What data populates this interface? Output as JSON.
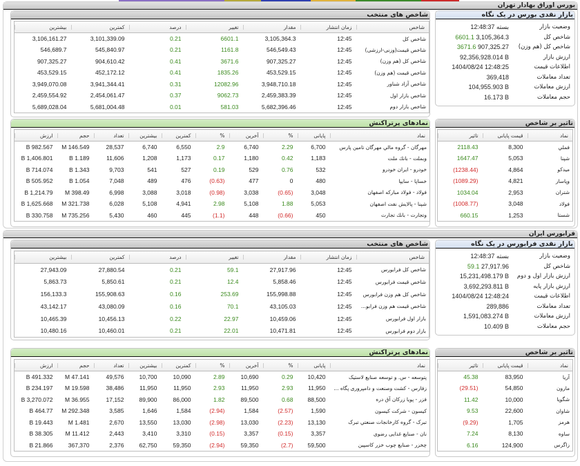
{
  "top_strip_colors": [
    "#8a6fc4",
    "#b5a93a",
    "#2f3fb0",
    "#e0b33e",
    "#3a8a2a",
    "#cc2a2a"
  ],
  "colors": {
    "positive": "#3b8a1e",
    "negative": "#d22b2b"
  },
  "tse": {
    "title": "بورس اوراق بهادار تهران",
    "indices": {
      "title": "شاخص های منتخب",
      "headers": [
        "شاخص",
        "زمان انتشار",
        "مقدار",
        "تغییر",
        "درصد",
        "کمترین",
        "بیشترین"
      ],
      "rows": [
        [
          "شاخص کل",
          "12:45",
          "3,105,364.3",
          "6601.1",
          "0.21",
          "3,101,339.09",
          "3,106,161.27"
        ],
        [
          "شاخص قیمت(وزنی-ارزشی)",
          "12:45",
          "546,549.43",
          "1161.8",
          "0.21",
          "545,840.97",
          "546,689.7"
        ],
        [
          "شاخص کل (هم وزن)",
          "12:45",
          "907,325.27",
          "3671.6",
          "0.41",
          "904,610.42",
          "907,325.27"
        ],
        [
          "شاخص قیمت (هم وزن)",
          "12:45",
          "453,529.15",
          "1835.26",
          "0.41",
          "452,172.12",
          "453,529.15"
        ],
        [
          "شاخص آزاد شناور",
          "12:45",
          "3,948,710.18",
          "12082.96",
          "0.31",
          "3,941,344.41",
          "3,949,070.08"
        ],
        [
          "شاخص بازار اول",
          "12:45",
          "2,459,383.39",
          "9062.73",
          "0.37",
          "2,454,061.47",
          "2,459,554.92"
        ],
        [
          "شاخص بازار دوم",
          "12:45",
          "5,682,396.46",
          "581.03",
          "0.01",
          "5,681,004.48",
          "5,689,028.04"
        ]
      ]
    },
    "summary": {
      "title": "بازار نقدی بورس در یک نگاه",
      "rows": [
        {
          "label": "وضعیت بازار",
          "value": "بسته 12:48:37"
        },
        {
          "label": "شاخص کل",
          "change": "6601.1",
          "value": "3,105,364.3"
        },
        {
          "label": "شاخص کل (هم وزن)",
          "change": "3671.6",
          "value": "907,325.27"
        },
        {
          "label": "ارزش بازار",
          "value": "92,356,928.014 B"
        },
        {
          "label": "اطلاعات قیمت",
          "value": "1404/08/24 12:48:25"
        },
        {
          "label": "تعداد معاملات",
          "value": "369,418"
        },
        {
          "label": "ارزش معاملات",
          "value": "104,955.903 B"
        },
        {
          "label": "حجم معاملات",
          "value": "16.173 B"
        }
      ]
    },
    "trades": {
      "title": "نمادهای پرتراکنش",
      "headers": [
        "نماد",
        "پایانی",
        "%",
        "آخرین",
        "%",
        "کمترین",
        "بیشترین",
        "تعداد",
        "حجم",
        "ارزش"
      ],
      "rows": [
        [
          "مهرگان - گروه مالي مهرگان تامين پارس",
          "6,700",
          "2.29",
          "6,740",
          "2.9",
          "6,550",
          "6,740",
          "28,537",
          "146.549 M",
          "982.567 B"
        ],
        [
          "وبملت - بانك ملت",
          "1,183",
          "0.42",
          "1,180",
          "0.17",
          "1,173",
          "1,208",
          "11,606",
          "1.189 B",
          "1,406.801 B"
        ],
        [
          "خودرو - ایران خودرو",
          "532",
          "0.76",
          "529",
          "0.19",
          "527",
          "541",
          "9,703",
          "1.343 B",
          "714.074 B"
        ],
        [
          "خساپا - سايپا",
          "480",
          "0",
          "477",
          "(0.63)",
          "476",
          "489",
          "7,048",
          "1.054 B",
          "505.952 B"
        ],
        [
          "فولاد - فولاد مباركه اصفهان",
          "3,048",
          "(0.65)",
          "3,038",
          "(0.98)",
          "3,018",
          "3,088",
          "6,998",
          "398.49 M",
          "1,214.79 B"
        ],
        [
          "شپنا - پالایش نفت اصفهان",
          "5,053",
          "1.88",
          "5,108",
          "2.98",
          "4,941",
          "5,108",
          "6,028",
          "321.738 M",
          "1,625.668 B"
        ],
        [
          "وتجارت - بانك تجارت",
          "450",
          "(0.66)",
          "448",
          "(1.1)",
          "445",
          "460",
          "5,430",
          "735.256 M",
          "330.758 B"
        ]
      ]
    },
    "impact": {
      "title": "تاثیر بر شاخص",
      "headers": [
        "نماد",
        "قیمت پایانی",
        "تاثیر"
      ],
      "rows": [
        [
          "فملي",
          "8,300",
          "2118.43"
        ],
        [
          "شپنا",
          "5,053",
          "1647.47"
        ],
        [
          "میدکو",
          "4,864",
          "(1238.44)"
        ],
        [
          "وپاسار",
          "4,821",
          "(1089.29)"
        ],
        [
          "شتران",
          "2,953",
          "1034.04"
        ],
        [
          "فولاد",
          "3,048",
          "(1008.77)"
        ],
        [
          "شستا",
          "1,253",
          "660.15"
        ]
      ]
    }
  },
  "ifb": {
    "title": "فرابورس ایران",
    "indices": {
      "title": "شاخص های منتخب",
      "headers": [
        "شاخص",
        "زمان انتشار",
        "مقدار",
        "تغییر",
        "درصد",
        "کمترین",
        "بیشترین"
      ],
      "rows": [
        [
          "شاخص كل فرابورس",
          "12:45",
          "27,917.96",
          "59.1",
          "0.21",
          "27,880.54",
          "27,943.09"
        ],
        [
          "شاخص قيمت فرابورس",
          "12:45",
          "5,858.46",
          "12.4",
          "0.21",
          "5,850.61",
          "5,863.73"
        ],
        [
          "شاخص كل هم وزن فرابورس",
          "12:45",
          "155,998.88",
          "253.69",
          "0.16",
          "155,908.63",
          "156,133.3"
        ],
        [
          "شاخص قيمت هم وزن فرابو...",
          "12:45",
          "43,105.03",
          "70.1",
          "0.16",
          "43,080.09",
          "43,142.17"
        ],
        [
          "بازار اول فرابورس",
          "12:45",
          "10,459.06",
          "22.97",
          "0.22",
          "10,456.13",
          "10,465.39"
        ],
        [
          "بازار دوم فرابورس",
          "12:45",
          "10,471.81",
          "22.01",
          "0.21",
          "10,460.01",
          "10,480.16"
        ]
      ]
    },
    "summary": {
      "title": "بازار نقدی فرابورس در یک نگاه",
      "rows": [
        {
          "label": "وضعیت بازار",
          "value": "بسته 12:48:37"
        },
        {
          "label": "شاخص کل",
          "change": "59.1",
          "value": "27,917.96"
        },
        {
          "label": "ارزش بازار اول و دوم",
          "value": "15,231,498.179 B"
        },
        {
          "label": "ارزش بازار پایه",
          "value": "3,692,293.811 B"
        },
        {
          "label": "اطلاعات قیمت",
          "value": "1404/08/24 12:48:24"
        },
        {
          "label": "تعداد معاملات",
          "value": "289,886"
        },
        {
          "label": "ارزش معاملات",
          "value": "1,591,083.274 B"
        },
        {
          "label": "حجم معاملات",
          "value": "10.409 B"
        }
      ]
    },
    "trades": {
      "title": "نمادهای پرتراکنش",
      "headers": [
        "نماد",
        "پایانی",
        "%",
        "آخرین",
        "%",
        "کمترین",
        "بیشترین",
        "تعداد",
        "حجم",
        "ارزش"
      ],
      "rows": [
        [
          "پتوسعه - س. و توسعه صنایع لاستیک",
          "10,420",
          "0.29",
          "10,690",
          "2.89",
          "10,090",
          "10,700",
          "49,576",
          "47.141 M",
          "491.332 B"
        ],
        [
          "زفارس - کشت وصنعت و دامپروری پگاه ...",
          "11,950",
          "2.93",
          "11,950",
          "2.93",
          "11,950",
          "11,950",
          "38,486",
          "19.598 M",
          "234.197 B"
        ],
        [
          "فزر - پویا زرکان آق دره",
          "88,500",
          "0.68",
          "89,500",
          "1.82",
          "86,000",
          "89,900",
          "17,152",
          "36.955 M",
          "3,270.072 B"
        ],
        [
          "کیسون - شرکت کیسون",
          "1,590",
          "(2.57)",
          "1,584",
          "(2.94)",
          "1,584",
          "1,646",
          "3,585",
          "292.348 M",
          "464.77 B"
        ],
        [
          "تبرک - گروه کارخانجات صنعتي تبرک",
          "13,130",
          "(2.23)",
          "13,030",
          "(2.98)",
          "13,030",
          "13,550",
          "2,670",
          "1.481 M",
          "19.443 B"
        ],
        [
          "نان - صنایع غذایی رضوی",
          "3,357",
          "(0.15)",
          "3,357",
          "(0.15)",
          "3,310",
          "3,410",
          "2,443",
          "11.412 M",
          "38.305 B"
        ],
        [
          "چخزر - صنایع چوب خزر کاسپین",
          "59,500",
          "(2.7)",
          "59,350",
          "(2.94)",
          "59,350",
          "62,750",
          "2,376",
          "367,370",
          "21.866 B"
        ]
      ]
    },
    "impact": {
      "title": "تاثیر بر شاخص",
      "headers": [
        "نماد",
        "قیمت پایانی",
        "تاثیر"
      ],
      "rows": [
        [
          "آريا",
          "83,950",
          "45.38"
        ],
        [
          "مارون",
          "54,850",
          "(29.51)"
        ],
        [
          "شگويا",
          "10,000",
          "11.42"
        ],
        [
          "شاوان",
          "22,600",
          "9.53"
        ],
        [
          "هرمز",
          "1,705",
          "(9.29)"
        ],
        [
          "ساوه",
          "8,130",
          "7.24"
        ],
        [
          "زاگرس",
          "124,900",
          "6.16"
        ]
      ]
    }
  }
}
